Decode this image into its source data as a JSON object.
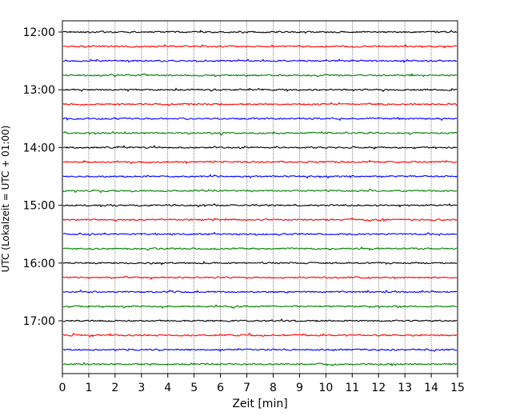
{
  "chart_data": {
    "type": "line",
    "title": "",
    "xlabel": "Zeit  [min]",
    "ylabel": "UTC (Lokalzeit = UTC + 01:00)",
    "xlim": [
      0,
      15
    ],
    "x_ticks": [
      "0",
      "1",
      "2",
      "3",
      "4",
      "5",
      "6",
      "7",
      "8",
      "9",
      "10",
      "11",
      "12",
      "13",
      "14",
      "15"
    ],
    "y_tick_labels": [
      "12:00",
      "13:00",
      "14:00",
      "15:00",
      "16:00",
      "17:00"
    ],
    "trace_interval_minutes": 15,
    "trace_start": "12:00",
    "trace_count": 24,
    "trace_colors": [
      "#000000",
      "#ff0000",
      "#0000ff",
      "#008000"
    ],
    "grid": "vertical-dotted",
    "legend": "none"
  }
}
